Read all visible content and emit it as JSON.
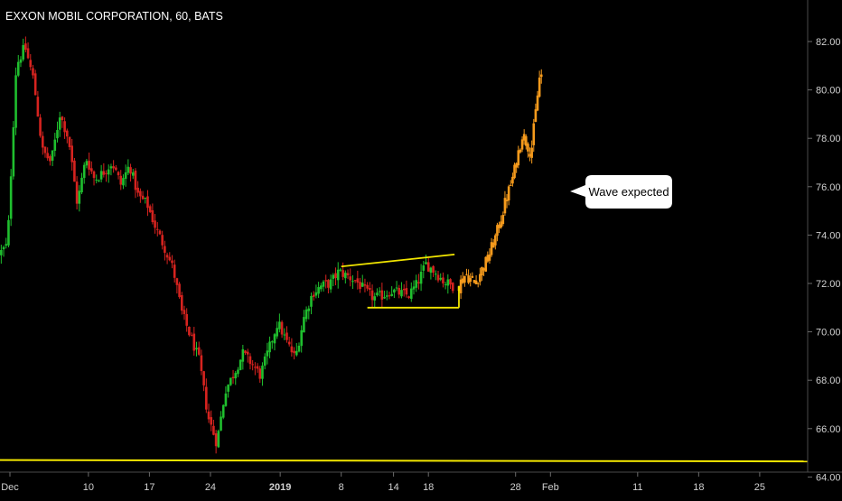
{
  "header": {
    "symbol_title": "EXXON MOBIL CORPORATION, 60, BATS"
  },
  "colors": {
    "background": "#000000",
    "up": "#1fbf2e",
    "down": "#d6231f",
    "projection": "#f59a1c",
    "trendline": "#f2e600",
    "axis_text": "#d0d0d0",
    "callout_bg": "#ffffff",
    "callout_text": "#000000"
  },
  "annotation": {
    "callout_text": "Wave expected"
  },
  "chart_data": {
    "type": "candlestick",
    "title": "EXXON MOBIL CORPORATION, 60, BATS",
    "xlabel": "",
    "ylabel": "",
    "ylim": [
      63.8,
      83.5
    ],
    "grid": false,
    "y_ticks": [
      "82.00",
      "80.00",
      "78.00",
      "76.00",
      "74.00",
      "72.00",
      "70.00",
      "68.00",
      "66.00",
      "64.00"
    ],
    "y_tick_values": [
      82,
      80,
      78,
      76,
      74,
      72,
      70,
      68,
      66,
      64
    ],
    "x_ticks": [
      {
        "label": "Dec",
        "day": 0
      },
      {
        "label": "10",
        "day": 9
      },
      {
        "label": "17",
        "day": 16
      },
      {
        "label": "24",
        "day": 23
      },
      {
        "label": "2019",
        "day": 31
      },
      {
        "label": "8",
        "day": 38
      },
      {
        "label": "14",
        "day": 44
      },
      {
        "label": "18",
        "day": 48
      },
      {
        "label": "28",
        "day": 58
      },
      {
        "label": "Feb",
        "day": 62
      },
      {
        "label": "11",
        "day": 72
      },
      {
        "label": "18",
        "day": 79
      },
      {
        "label": "25",
        "day": 86
      }
    ],
    "xlim": [
      -1,
      89
    ],
    "price_path": [
      [
        -1,
        73.2
      ],
      [
        0,
        73.6
      ],
      [
        1,
        81.0
      ],
      [
        2,
        81.8
      ],
      [
        3,
        80.4
      ],
      [
        4,
        77.5
      ],
      [
        5,
        77.0
      ],
      [
        6,
        79.0
      ],
      [
        7,
        78.0
      ],
      [
        8,
        75.3
      ],
      [
        9,
        77.2
      ],
      [
        10,
        76.3
      ],
      [
        11,
        76.6
      ],
      [
        12,
        77.0
      ],
      [
        13,
        76.1
      ],
      [
        14,
        76.9
      ],
      [
        15,
        75.6
      ],
      [
        16,
        75.3
      ],
      [
        17,
        74.3
      ],
      [
        18,
        73.5
      ],
      [
        19,
        72.6
      ],
      [
        20,
        70.8
      ],
      [
        21,
        69.8
      ],
      [
        22,
        68.8
      ],
      [
        23,
        66.5
      ],
      [
        24,
        65.4
      ],
      [
        25,
        67.6
      ],
      [
        26,
        68.3
      ],
      [
        27,
        69.1
      ],
      [
        28,
        68.7
      ],
      [
        29,
        68.2
      ],
      [
        30,
        69.3
      ],
      [
        31,
        70.4
      ],
      [
        32,
        69.6
      ],
      [
        33,
        68.9
      ],
      [
        34,
        70.6
      ],
      [
        35,
        71.6
      ],
      [
        36,
        71.9
      ],
      [
        37,
        72.0
      ],
      [
        38,
        72.5
      ],
      [
        39,
        72.3
      ],
      [
        40,
        72.1
      ],
      [
        41,
        71.7
      ],
      [
        42,
        71.4
      ],
      [
        43,
        71.5
      ],
      [
        44,
        71.7
      ],
      [
        45,
        71.6
      ],
      [
        46,
        71.5
      ],
      [
        47,
        72.0
      ],
      [
        48,
        72.8
      ],
      [
        49,
        72.5
      ],
      [
        50,
        72.1
      ],
      [
        51,
        71.9
      ]
    ],
    "projection_path": [
      [
        51.5,
        71.8
      ],
      [
        52.5,
        72.4
      ],
      [
        53.5,
        72.0
      ],
      [
        55,
        73.0
      ],
      [
        56,
        74.0
      ],
      [
        57,
        75.3
      ],
      [
        58,
        76.5
      ],
      [
        59,
        78.2
      ],
      [
        60,
        77.4
      ],
      [
        61,
        80.6
      ]
    ],
    "resistance_line": {
      "from": [
        38,
        72.7
      ],
      "to": [
        51,
        73.2
      ]
    },
    "support_line": {
      "from": [
        41,
        71.0
      ],
      "to": [
        51.5,
        71.0
      ]
    },
    "horizontal_support": {
      "level": 64.7
    }
  }
}
